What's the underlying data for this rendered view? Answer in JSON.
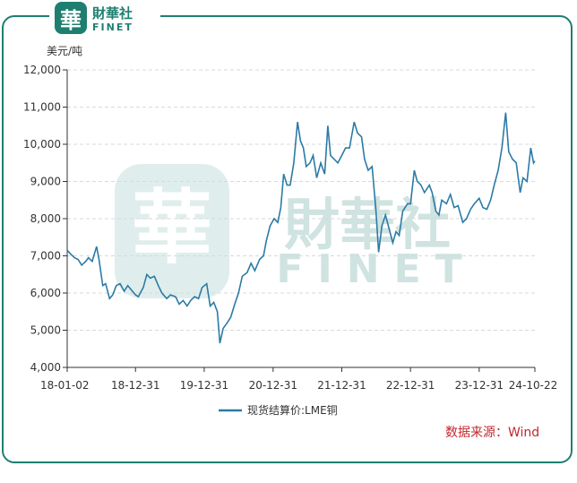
{
  "brand": {
    "logo_glyph": "華",
    "name_cn": "財華社",
    "name_en": "FINET",
    "color": "#1e7f70"
  },
  "chart_data": {
    "type": "line",
    "ylabel": "美元/吨",
    "ylim": [
      4000,
      12000
    ],
    "yticks": [
      "4,000",
      "5,000",
      "6,000",
      "7,000",
      "8,000",
      "9,000",
      "10,000",
      "11,000",
      "12,000"
    ],
    "xticks": [
      "18-01-02",
      "18-12-31",
      "19-12-31",
      "20-12-31",
      "21-12-31",
      "22-12-31",
      "23-12-31",
      "24-10-22"
    ],
    "grid": true,
    "legend_position": "bottom-center",
    "series": [
      {
        "name": "现货结算价:LME铜",
        "color": "#2b7ba6",
        "points": [
          [
            "2018-01-02",
            7150
          ],
          [
            "2018-01-20",
            7050
          ],
          [
            "2018-02-10",
            6950
          ],
          [
            "2018-03-01",
            6900
          ],
          [
            "2018-03-20",
            6750
          ],
          [
            "2018-04-10",
            6850
          ],
          [
            "2018-04-25",
            6950
          ],
          [
            "2018-05-15",
            6850
          ],
          [
            "2018-06-07",
            7250
          ],
          [
            "2018-06-20",
            6900
          ],
          [
            "2018-07-10",
            6200
          ],
          [
            "2018-07-25",
            6250
          ],
          [
            "2018-08-15",
            5850
          ],
          [
            "2018-09-01",
            5950
          ],
          [
            "2018-09-20",
            6200
          ],
          [
            "2018-10-10",
            6250
          ],
          [
            "2018-11-01",
            6050
          ],
          [
            "2018-11-20",
            6200
          ],
          [
            "2018-12-31",
            5950
          ],
          [
            "2019-01-15",
            5900
          ],
          [
            "2019-02-10",
            6150
          ],
          [
            "2019-03-01",
            6500
          ],
          [
            "2019-03-20",
            6400
          ],
          [
            "2019-04-10",
            6450
          ],
          [
            "2019-05-01",
            6200
          ],
          [
            "2019-05-20",
            6000
          ],
          [
            "2019-06-15",
            5850
          ],
          [
            "2019-07-05",
            5950
          ],
          [
            "2019-08-01",
            5900
          ],
          [
            "2019-08-20",
            5700
          ],
          [
            "2019-09-10",
            5800
          ],
          [
            "2019-10-01",
            5650
          ],
          [
            "2019-10-20",
            5800
          ],
          [
            "2019-11-10",
            5900
          ],
          [
            "2019-12-01",
            5850
          ],
          [
            "2019-12-20",
            6150
          ],
          [
            "2020-01-13",
            6250
          ],
          [
            "2020-02-01",
            5650
          ],
          [
            "2020-02-20",
            5750
          ],
          [
            "2020-03-10",
            5500
          ],
          [
            "2020-03-23",
            4650
          ],
          [
            "2020-04-10",
            5050
          ],
          [
            "2020-05-01",
            5200
          ],
          [
            "2020-05-20",
            5350
          ],
          [
            "2020-06-10",
            5700
          ],
          [
            "2020-06-30",
            6000
          ],
          [
            "2020-07-20",
            6450
          ],
          [
            "2020-08-15",
            6550
          ],
          [
            "2020-09-05",
            6800
          ],
          [
            "2020-09-25",
            6600
          ],
          [
            "2020-10-20",
            6900
          ],
          [
            "2020-11-10",
            7000
          ],
          [
            "2020-11-25",
            7400
          ],
          [
            "2020-12-15",
            7800
          ],
          [
            "2021-01-05",
            8000
          ],
          [
            "2021-01-25",
            7900
          ],
          [
            "2021-02-10",
            8300
          ],
          [
            "2021-02-25",
            9200
          ],
          [
            "2021-03-15",
            8900
          ],
          [
            "2021-04-01",
            8900
          ],
          [
            "2021-04-20",
            9500
          ],
          [
            "2021-05-10",
            10600
          ],
          [
            "2021-05-25",
            10100
          ],
          [
            "2021-06-10",
            9900
          ],
          [
            "2021-06-25",
            9400
          ],
          [
            "2021-07-15",
            9500
          ],
          [
            "2021-08-01",
            9700
          ],
          [
            "2021-08-20",
            9100
          ],
          [
            "2021-09-10",
            9500
          ],
          [
            "2021-10-01",
            9200
          ],
          [
            "2021-10-18",
            10500
          ],
          [
            "2021-11-01",
            9700
          ],
          [
            "2021-11-20",
            9600
          ],
          [
            "2021-12-10",
            9500
          ],
          [
            "2021-12-31",
            9700
          ],
          [
            "2022-01-20",
            9900
          ],
          [
            "2022-02-10",
            9900
          ],
          [
            "2022-03-07",
            10600
          ],
          [
            "2022-03-25",
            10300
          ],
          [
            "2022-04-15",
            10200
          ],
          [
            "2022-05-01",
            9600
          ],
          [
            "2022-05-20",
            9300
          ],
          [
            "2022-06-10",
            9400
          ],
          [
            "2022-06-30",
            8250
          ],
          [
            "2022-07-15",
            7100
          ],
          [
            "2022-08-01",
            7800
          ],
          [
            "2022-08-20",
            8100
          ],
          [
            "2022-09-10",
            7700
          ],
          [
            "2022-09-28",
            7350
          ],
          [
            "2022-10-15",
            7650
          ],
          [
            "2022-11-01",
            7550
          ],
          [
            "2022-11-20",
            8200
          ],
          [
            "2022-12-15",
            8400
          ],
          [
            "2022-12-31",
            8400
          ],
          [
            "2023-01-20",
            9300
          ],
          [
            "2023-02-05",
            9000
          ],
          [
            "2023-02-25",
            8900
          ],
          [
            "2023-03-15",
            8700
          ],
          [
            "2023-04-10",
            8900
          ],
          [
            "2023-04-25",
            8700
          ],
          [
            "2023-05-15",
            8200
          ],
          [
            "2023-05-31",
            8100
          ],
          [
            "2023-06-15",
            8500
          ],
          [
            "2023-07-10",
            8400
          ],
          [
            "2023-07-31",
            8650
          ],
          [
            "2023-08-20",
            8300
          ],
          [
            "2023-09-10",
            8350
          ],
          [
            "2023-10-05",
            7900
          ],
          [
            "2023-10-25",
            8000
          ],
          [
            "2023-11-15",
            8250
          ],
          [
            "2023-12-05",
            8400
          ],
          [
            "2023-12-31",
            8550
          ],
          [
            "2024-01-20",
            8300
          ],
          [
            "2024-02-10",
            8250
          ],
          [
            "2024-03-01",
            8500
          ],
          [
            "2024-03-20",
            8900
          ],
          [
            "2024-04-10",
            9300
          ],
          [
            "2024-04-30",
            9900
          ],
          [
            "2024-05-20",
            10850
          ],
          [
            "2024-06-05",
            9800
          ],
          [
            "2024-06-25",
            9600
          ],
          [
            "2024-07-15",
            9500
          ],
          [
            "2024-08-05",
            8700
          ],
          [
            "2024-08-20",
            9100
          ],
          [
            "2024-09-10",
            9000
          ],
          [
            "2024-09-30",
            9900
          ],
          [
            "2024-10-15",
            9500
          ],
          [
            "2024-10-22",
            9550
          ]
        ]
      }
    ]
  },
  "source_label": "数据来源：Wind",
  "source_color": "#c0282d",
  "watermark": {
    "name_cn": "財華社",
    "name_en": "FINET",
    "color": "#cfe3e0"
  }
}
